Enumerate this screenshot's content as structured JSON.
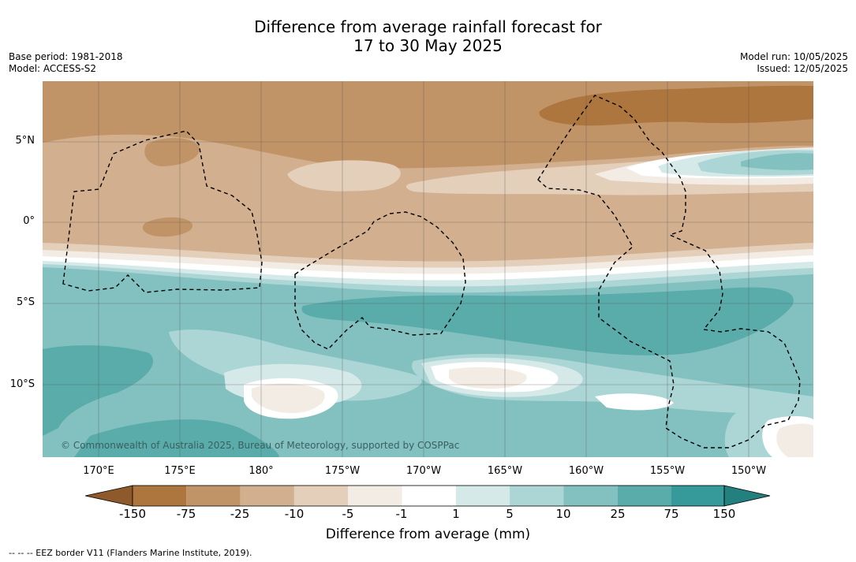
{
  "title": {
    "line1": "Difference from average rainfall forecast for",
    "line2": "17 to 30 May 2025"
  },
  "meta_left": {
    "base_period": "Base period: 1981-2018",
    "model": "Model: ACCESS-S2"
  },
  "meta_right": {
    "model_run": "Model run: 10/05/2025",
    "issued": "Issued: 12/05/2025"
  },
  "lat_labels": [
    "5°N",
    "0°",
    "5°S",
    "10°S"
  ],
  "lon_labels": [
    "170°E",
    "175°E",
    "180°",
    "175°W",
    "170°W",
    "165°W",
    "160°W",
    "155°W",
    "150°W"
  ],
  "copyright": "© Commonwealth of Australia 2025, Bureau of Meteorology, supported by COSPPac",
  "colorbar": {
    "ticks": [
      "-150",
      "-75",
      "-25",
      "-10",
      "-5",
      "-1",
      "1",
      "5",
      "10",
      "25",
      "75",
      "150"
    ],
    "colors": [
      "#8e5a2c",
      "#ad763f",
      "#c19467",
      "#d2b08f",
      "#e4cfbb",
      "#f3ece4",
      "#ffffff",
      "#d5e9e8",
      "#abd6d5",
      "#82c1bf",
      "#5aacab",
      "#36999a",
      "#23807f"
    ],
    "title": "Difference from average (mm)"
  },
  "legend_note": "--  --  -- EEZ border V11 (Flanders Marine Institute, 2019)."
}
